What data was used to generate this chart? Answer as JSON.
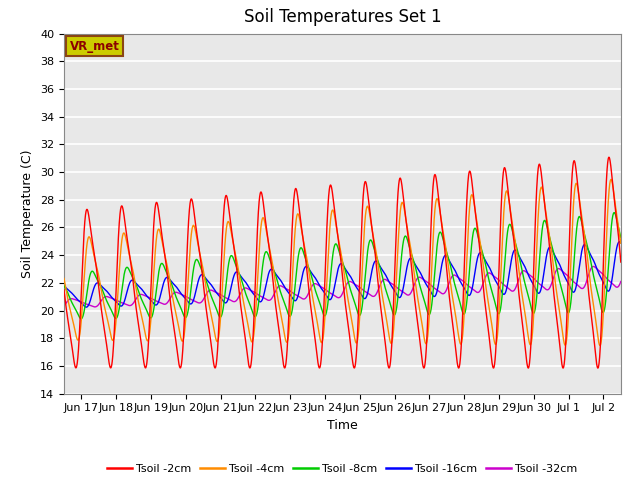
{
  "title": "Soil Temperatures Set 1",
  "xlabel": "Time",
  "ylabel": "Soil Temperature (C)",
  "ylim": [
    14,
    40
  ],
  "yticks": [
    14,
    16,
    18,
    20,
    22,
    24,
    26,
    28,
    30,
    32,
    34,
    36,
    38,
    40
  ],
  "colors": {
    "tsoil_2cm": "#FF0000",
    "tsoil_4cm": "#FF8C00",
    "tsoil_8cm": "#00CC00",
    "tsoil_16cm": "#0000FF",
    "tsoil_32cm": "#CC00CC"
  },
  "legend_labels": [
    "Tsoil -2cm",
    "Tsoil -4cm",
    "Tsoil -8cm",
    "Tsoil -16cm",
    "Tsoil -32cm"
  ],
  "annotation_text": "VR_met",
  "annotation_box_facecolor": "#CCCC00",
  "annotation_box_edgecolor": "#8B4513",
  "annotation_text_color": "#8B0000",
  "plot_bg_color": "#E8E8E8",
  "grid_color": "#FFFFFF",
  "title_fontsize": 12,
  "label_fontsize": 9,
  "tick_fontsize": 8
}
